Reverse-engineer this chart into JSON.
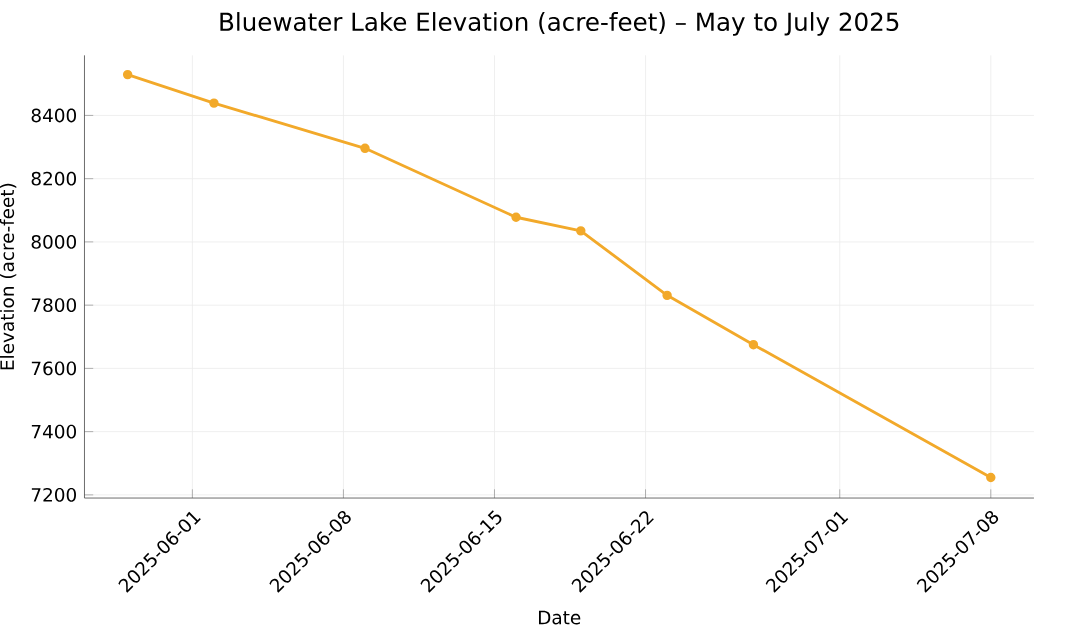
{
  "chart_data": {
    "type": "line",
    "title": "Bluewater Lake Elevation (acre-feet) – May to July 2025",
    "xlabel": "Date",
    "ylabel": "Elevation (acre-feet)",
    "x": [
      "2025-05-29",
      "2025-06-02",
      "2025-06-09",
      "2025-06-16",
      "2025-06-19",
      "2025-06-23",
      "2025-06-27",
      "2025-07-08"
    ],
    "series": [
      {
        "color": "#f2a92a",
        "values": [
          8529,
          8439,
          8296,
          8078,
          8035,
          7831,
          7675,
          7255
        ]
      }
    ],
    "xlim": [
      "2025-05-27",
      "2025-07-10"
    ],
    "ylim": [
      7190,
      8590
    ],
    "xticks": [
      "2025-06-01",
      "2025-06-08",
      "2025-06-15",
      "2025-06-22",
      "2025-07-01",
      "2025-07-08"
    ],
    "yticks": [
      7200,
      7400,
      7600,
      7800,
      8000,
      8200,
      8400
    ],
    "grid": true,
    "marker": "circle",
    "line_style": "solid"
  }
}
